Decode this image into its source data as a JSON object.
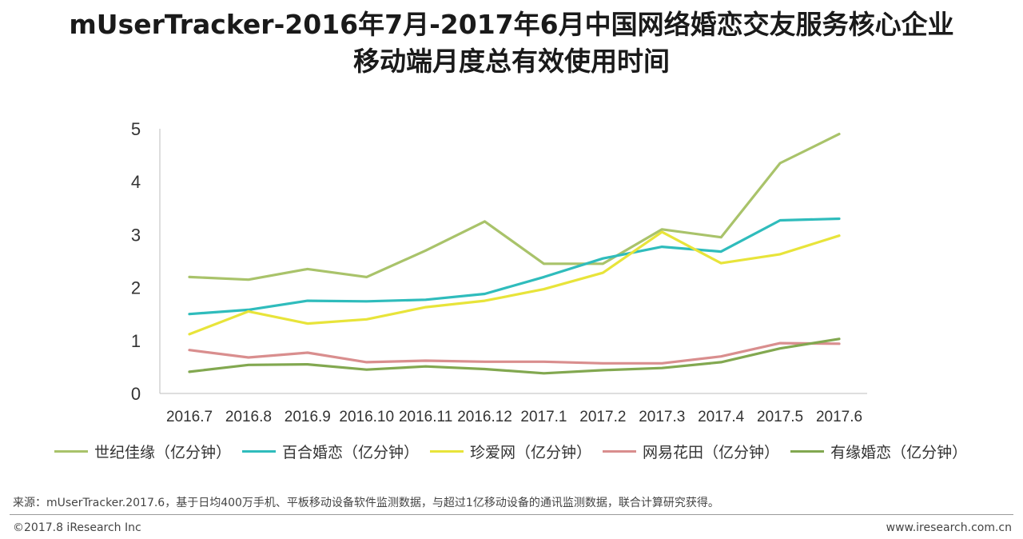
{
  "title_lines": [
    "mUserTracker-2016年7月-2017年6月中国网络婚恋交友服务核心企业",
    "移动端月度总有效使用时间"
  ],
  "chart_data": {
    "type": "line",
    "title": "mUserTracker-2016年7月-2017年6月中国网络婚恋交友服务核心企业移动端月度总有效使用时间",
    "xlabel": "",
    "ylabel": "",
    "categories": [
      "2016.7",
      "2016.8",
      "2016.9",
      "2016.10",
      "2016.11",
      "2016.12",
      "2017.1",
      "2017.2",
      "2017.3",
      "2017.4",
      "2017.5",
      "2017.6"
    ],
    "ylim": [
      0,
      5
    ],
    "yticks": [
      0,
      1,
      2,
      3,
      4,
      5
    ],
    "grid": false,
    "legend_position": "bottom",
    "series": [
      {
        "name": "世纪佳缘（亿分钟）",
        "color": "#a9c36a",
        "values": [
          2.2,
          2.15,
          2.35,
          2.2,
          2.7,
          3.25,
          2.45,
          2.45,
          3.1,
          2.95,
          4.35,
          4.9
        ]
      },
      {
        "name": "百合婚恋（亿分钟）",
        "color": "#2fbcbc",
        "values": [
          1.5,
          1.58,
          1.75,
          1.74,
          1.77,
          1.88,
          2.2,
          2.55,
          2.77,
          2.68,
          3.27,
          3.3
        ]
      },
      {
        "name": "珍爱网（亿分钟）",
        "color": "#e8e43a",
        "values": [
          1.12,
          1.55,
          1.32,
          1.4,
          1.63,
          1.75,
          1.97,
          2.28,
          3.05,
          2.46,
          2.63,
          2.98
        ]
      },
      {
        "name": "网易花田（亿分钟）",
        "color": "#d98e8e",
        "values": [
          0.82,
          0.68,
          0.77,
          0.59,
          0.62,
          0.6,
          0.6,
          0.57,
          0.57,
          0.7,
          0.95,
          0.94
        ]
      },
      {
        "name": "有缘婚恋（亿分钟）",
        "color": "#82a850",
        "values": [
          0.41,
          0.54,
          0.55,
          0.45,
          0.51,
          0.46,
          0.38,
          0.44,
          0.48,
          0.59,
          0.85,
          1.03
        ]
      }
    ]
  },
  "footer": {
    "source": "来源：mUserTracker.2017.6，基于日均400万手机、平板移动设备软件监测数据，与超过1亿移动设备的通讯监测数据，联合计算研究获得。",
    "copyright": "©2017.8 iResearch Inc",
    "website": "www.iresearch.com.cn"
  }
}
